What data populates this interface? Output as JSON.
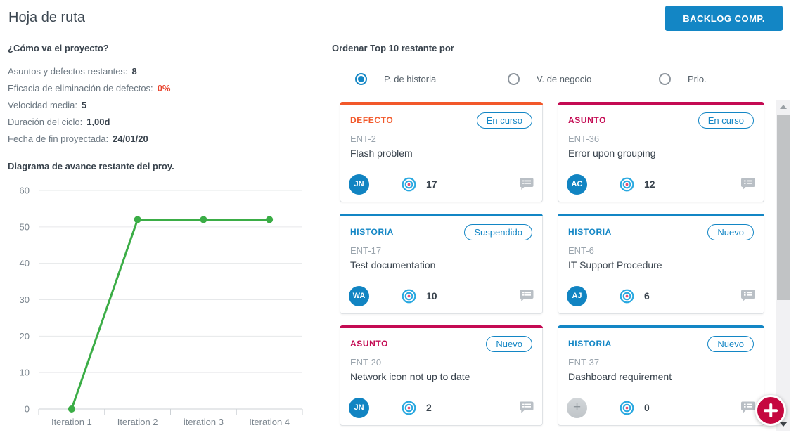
{
  "page": {
    "title": "Hoja de ruta"
  },
  "toolbar": {
    "backlog_button": "BACKLOG COMP."
  },
  "project_status": {
    "heading": "¿Cómo va el proyecto?",
    "stats": [
      {
        "label": "Asuntos y defectos restantes:",
        "value": "8",
        "highlight": false
      },
      {
        "label": "Eficacia de eliminación de defectos:",
        "value": "0%",
        "highlight": true
      },
      {
        "label": "Velocidad media:",
        "value": "5",
        "highlight": false
      },
      {
        "label": "Duración del ciclo:",
        "value": "1,00d",
        "highlight": false
      },
      {
        "label": "Fecha de fin proyectada:",
        "value": "24/01/20",
        "highlight": false
      }
    ]
  },
  "chart_data": {
    "type": "line",
    "title": "Diagrama de avance restante del proy.",
    "categories": [
      "Iteration 1",
      "Iteration 2",
      "iteration 3",
      "Iteration 4"
    ],
    "values": [
      0,
      52,
      52,
      52
    ],
    "ylim": [
      0,
      60
    ],
    "yticks": [
      0,
      10,
      20,
      30,
      40,
      50,
      60
    ],
    "xlabel": "",
    "ylabel": "",
    "grid": true,
    "legend": false,
    "line_color": "#3bad46"
  },
  "sort_panel": {
    "heading": "Ordenar Top 10 restante por",
    "options": [
      {
        "label": "P. de historia",
        "selected": true
      },
      {
        "label": "V. de negocio",
        "selected": false
      },
      {
        "label": "Prio.",
        "selected": false
      }
    ]
  },
  "cards": [
    {
      "type_label": "DEFECTO",
      "accent": "#f2582a",
      "id": "ENT-2",
      "title": "Flash problem",
      "status": "En curso",
      "avatar": "JN",
      "unassigned": false,
      "points": "17"
    },
    {
      "type_label": "ASUNTO",
      "accent": "#c40b53",
      "id": "ENT-36",
      "title": "Error upon grouping",
      "status": "En curso",
      "avatar": "AC",
      "unassigned": false,
      "points": "12"
    },
    {
      "type_label": "HISTORIA",
      "accent": "#1386c5",
      "id": "ENT-17",
      "title": "Test documentation",
      "status": "Suspendido",
      "avatar": "WA",
      "unassigned": false,
      "points": "10"
    },
    {
      "type_label": "HISTORIA",
      "accent": "#1386c5",
      "id": "ENT-6",
      "title": "IT Support Procedure",
      "status": "Nuevo",
      "avatar": "AJ",
      "unassigned": false,
      "points": "6"
    },
    {
      "type_label": "ASUNTO",
      "accent": "#c40b53",
      "id": "ENT-20",
      "title": "Network icon not up to date",
      "status": "Nuevo",
      "avatar": "JN",
      "unassigned": false,
      "points": "2"
    },
    {
      "type_label": "HISTORIA",
      "accent": "#1386c5",
      "id": "ENT-37",
      "title": "Dashboard requirement",
      "status": "Nuevo",
      "avatar": "+",
      "unassigned": true,
      "points": "0"
    }
  ],
  "fab": {
    "label": "+"
  },
  "colors": {
    "accent_blue": "#1386c5",
    "defect_orange": "#f2582a",
    "issue_crimson": "#c40b53",
    "fab_red": "#c5073f",
    "stat_alert_red": "#e8432d",
    "chart_line_green": "#3bad46"
  }
}
